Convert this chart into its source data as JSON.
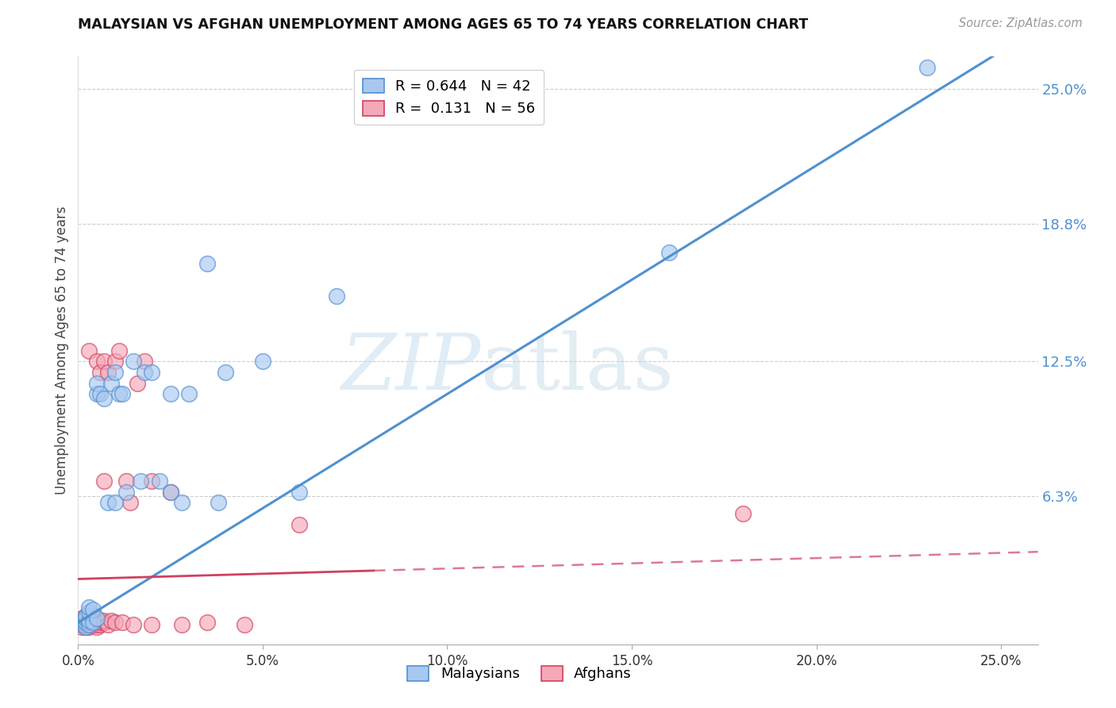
{
  "title": "MALAYSIAN VS AFGHAN UNEMPLOYMENT AMONG AGES 65 TO 74 YEARS CORRELATION CHART",
  "source": "Source: ZipAtlas.com",
  "ylabel": "Unemployment Among Ages 65 to 74 years",
  "xmin": 0.0,
  "xmax": 0.25,
  "ymin": -0.005,
  "ymax": 0.265,
  "r_malaysian": 0.644,
  "n_malaysian": 42,
  "r_afghan": 0.131,
  "n_afghan": 56,
  "color_malaysian": "#a8c8f0",
  "color_afghan": "#f5a8b8",
  "line_color_malaysian": "#5090d0",
  "line_color_afghan": "#d04060",
  "watermark_zip": "ZIP",
  "watermark_atlas": "atlas",
  "ytick_vals": [
    0.063,
    0.125,
    0.188,
    0.25
  ],
  "ytick_labels": [
    "6.3%",
    "12.5%",
    "18.8%",
    "25.0%"
  ],
  "malaysian_x": [
    0.001,
    0.001,
    0.001,
    0.002,
    0.002,
    0.002,
    0.002,
    0.003,
    0.003,
    0.003,
    0.003,
    0.004,
    0.004,
    0.005,
    0.005,
    0.005,
    0.006,
    0.007,
    0.008,
    0.009,
    0.01,
    0.01,
    0.011,
    0.012,
    0.013,
    0.015,
    0.017,
    0.018,
    0.02,
    0.022,
    0.025,
    0.025,
    0.028,
    0.03,
    0.035,
    0.038,
    0.04,
    0.05,
    0.06,
    0.07,
    0.16,
    0.23
  ],
  "malaysian_y": [
    0.004,
    0.005,
    0.006,
    0.003,
    0.005,
    0.007,
    0.008,
    0.004,
    0.006,
    0.01,
    0.012,
    0.005,
    0.011,
    0.007,
    0.11,
    0.115,
    0.11,
    0.108,
    0.06,
    0.115,
    0.06,
    0.12,
    0.11,
    0.11,
    0.065,
    0.125,
    0.07,
    0.12,
    0.12,
    0.07,
    0.11,
    0.065,
    0.06,
    0.11,
    0.17,
    0.06,
    0.12,
    0.125,
    0.065,
    0.155,
    0.175,
    0.26
  ],
  "afghan_x": [
    0.001,
    0.001,
    0.001,
    0.001,
    0.001,
    0.002,
    0.002,
    0.002,
    0.002,
    0.002,
    0.002,
    0.002,
    0.003,
    0.003,
    0.003,
    0.003,
    0.003,
    0.003,
    0.004,
    0.004,
    0.004,
    0.004,
    0.004,
    0.005,
    0.005,
    0.005,
    0.005,
    0.005,
    0.005,
    0.006,
    0.006,
    0.006,
    0.007,
    0.007,
    0.007,
    0.007,
    0.008,
    0.008,
    0.009,
    0.01,
    0.01,
    0.011,
    0.012,
    0.013,
    0.014,
    0.015,
    0.016,
    0.018,
    0.02,
    0.02,
    0.025,
    0.028,
    0.035,
    0.045,
    0.06,
    0.18
  ],
  "afghan_y": [
    0.003,
    0.004,
    0.005,
    0.006,
    0.007,
    0.003,
    0.004,
    0.004,
    0.005,
    0.006,
    0.007,
    0.008,
    0.003,
    0.004,
    0.005,
    0.006,
    0.007,
    0.13,
    0.004,
    0.005,
    0.006,
    0.007,
    0.008,
    0.003,
    0.004,
    0.005,
    0.006,
    0.007,
    0.125,
    0.004,
    0.005,
    0.12,
    0.005,
    0.006,
    0.07,
    0.125,
    0.004,
    0.12,
    0.006,
    0.005,
    0.125,
    0.13,
    0.005,
    0.07,
    0.06,
    0.004,
    0.115,
    0.125,
    0.07,
    0.004,
    0.065,
    0.004,
    0.005,
    0.004,
    0.05,
    0.055
  ],
  "reg_m_slope": 1.05,
  "reg_m_intercept": 0.005,
  "reg_a_slope": 0.048,
  "reg_a_intercept": 0.025
}
